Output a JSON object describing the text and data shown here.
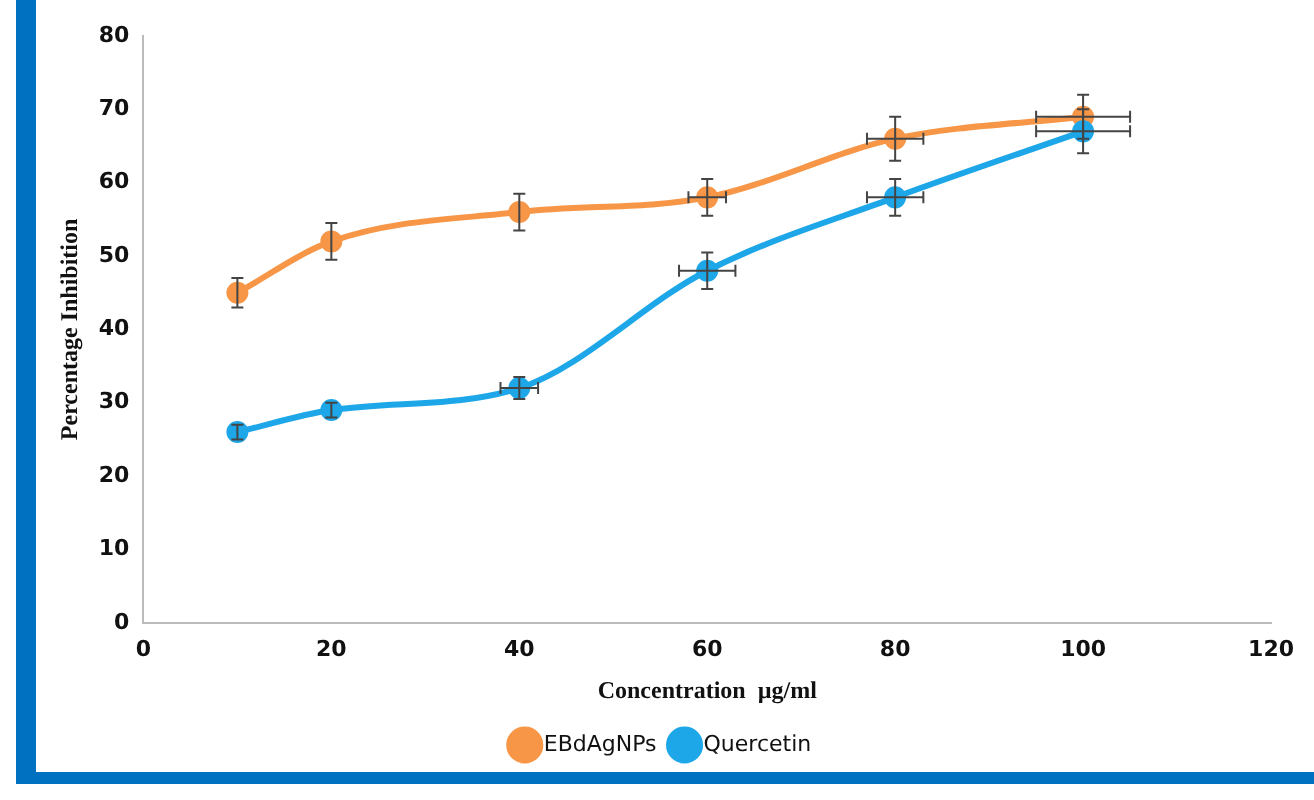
{
  "chart_data": {
    "type": "line",
    "xlabel": "Concentration  µg/ml",
    "ylabel": "Percentage Inhibition",
    "x": [
      10,
      20,
      40,
      60,
      80,
      100
    ],
    "series": [
      {
        "name": "EBdAgNPs",
        "color": "#f79646",
        "values": [
          45,
          52,
          56,
          58,
          66,
          69
        ],
        "errors": [
          2,
          2.5,
          2.5,
          2.5,
          3,
          3
        ],
        "xerrors": [
          null,
          null,
          null,
          2,
          3,
          5
        ]
      },
      {
        "name": "Quercetin",
        "color": "#1ea7e8",
        "values": [
          26,
          29,
          32,
          48,
          58,
          67
        ],
        "errors": [
          1,
          1,
          1.5,
          2.5,
          2.5,
          3
        ],
        "xerrors": [
          null,
          null,
          2,
          3,
          3,
          5
        ]
      }
    ],
    "xlim": [
      0,
      120
    ],
    "xticks": [
      0,
      20,
      40,
      60,
      80,
      100,
      120
    ],
    "ylim": [
      0,
      80
    ],
    "yticks": [
      0,
      10,
      20,
      30,
      40,
      50,
      60,
      70,
      80
    ],
    "grid": false,
    "legend": "bottom",
    "marker": "circle",
    "line_style": "solid"
  }
}
